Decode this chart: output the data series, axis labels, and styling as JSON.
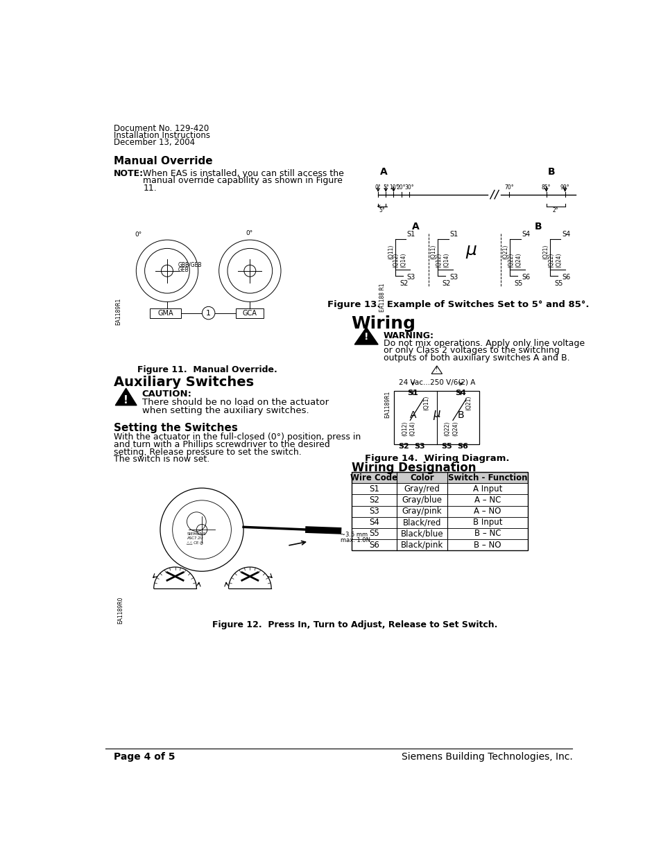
{
  "doc_header_line1": "Document No. 129-420",
  "doc_header_line2": "Installation Instructions",
  "doc_header_line3": "December 13, 2004",
  "section1_title": "Manual Override",
  "note_label": "NOTE:",
  "note_text1": "When EAS is installed, you can still access the",
  "note_text2": "manual override capability as shown in Figure",
  "note_text3": "11.",
  "fig11_caption": "Figure 11.  Manual Override.",
  "section2_title": "Auxiliary Switches",
  "caution_label": "CAUTION:",
  "caution_text1": "There should be no load on the actuator",
  "caution_text2": "when setting the auxiliary switches.",
  "section3_title": "Setting the Switches",
  "setting_text1": "With the actuator in the full-closed (0°) position, press in",
  "setting_text2": "and turn with a Phillips screwdriver to the desired",
  "setting_text3": "setting. Release pressure to set the switch.",
  "setting_text4": "The switch is now set.",
  "fig12_caption": "Figure 12.  Press In, Turn to Adjust, Release to Set Switch.",
  "fig13_caption": "Figure 13.  Example of Switches Set to 5° and 85°.",
  "section4_title": "Wiring",
  "warning_label": "WARNING:",
  "warning_text1": "Do not mix operations. Apply only line voltage",
  "warning_text2": "or only Class 2 voltages to the switching",
  "warning_text3": "outputs of both auxiliary switches A and B.",
  "fig14_caption": "Figure 14.  Wiring Diagram.",
  "fig14_voltage": "24 Vac...250 V/6(2) A",
  "section5_title": "Wiring Designation",
  "table_headers": [
    "Wire Code",
    "Color",
    "Switch - Function"
  ],
  "table_rows": [
    [
      "S1",
      "Gray/red",
      "A Input"
    ],
    [
      "S2",
      "Gray/blue",
      "A – NC"
    ],
    [
      "S3",
      "Gray/pink",
      "A – NO"
    ],
    [
      "S4",
      "Black/red",
      "B Input"
    ],
    [
      "S5",
      "Black/blue",
      "B – NC"
    ],
    [
      "S6",
      "Black/pink",
      "B – NO"
    ]
  ],
  "footer_left": "Page 4 of 5",
  "footer_right": "Siemens Building Technologies, Inc.",
  "bg_color": "#ffffff",
  "text_color": "#000000"
}
